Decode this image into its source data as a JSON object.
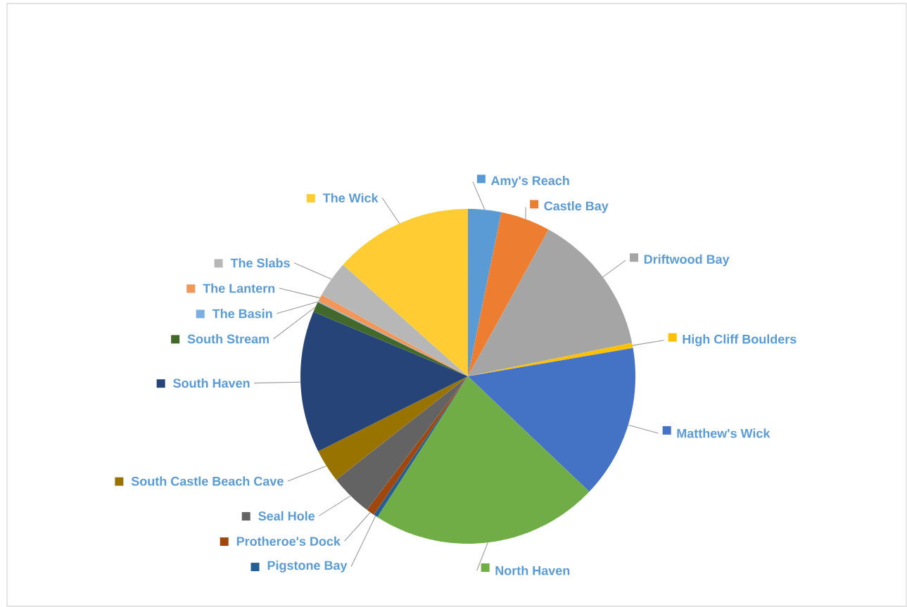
{
  "chart_data": {
    "type": "pie",
    "legend": "right",
    "categories": [
      "Amy's Reach",
      "Castle Bay",
      "Driftwood Bay",
      "High Cliff Boulders",
      "Matthew's Wick",
      "North Haven",
      "Pigstone Bay",
      "Protheroe's Dock",
      "Seal Hole",
      "South Castle Beach Cave",
      "South Haven",
      "South Stream",
      "The Basin",
      "The Lantern",
      "The Slabs",
      "The Wick"
    ],
    "values": [
      3.2,
      4.8,
      13.8,
      0.5,
      14.8,
      22.0,
      0.4,
      0.8,
      4.1,
      3.2,
      13.7,
      1.0,
      0.1,
      0.7,
      3.5,
      13.4
    ],
    "colors": [
      "#5b9bd5",
      "#ed7d31",
      "#a5a5a5",
      "#ffc000",
      "#4472c4",
      "#70ad47",
      "#255e91",
      "#9e480e",
      "#636363",
      "#997300",
      "#264478",
      "#43682b",
      "#7cafdd",
      "#f1975a",
      "#b7b7b7",
      "#ffcd33"
    ]
  }
}
